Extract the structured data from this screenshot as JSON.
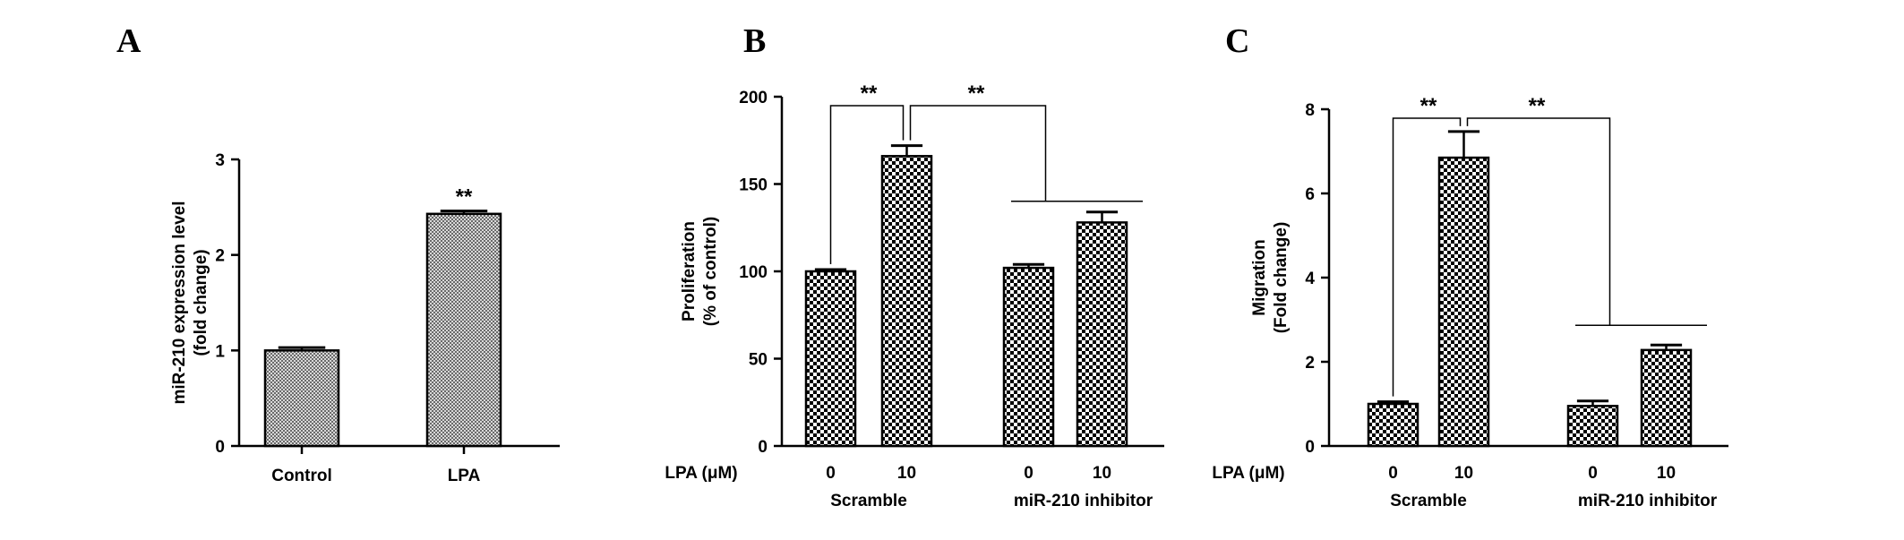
{
  "colors": {
    "ink": "#000000",
    "bar_pattern_dark": "#000000",
    "bar_pattern_light": "#ffffff"
  },
  "chart_data": [
    {
      "panel": "A",
      "type": "bar",
      "ylabel_lines": [
        "miR-210 expression level",
        "(fold change)"
      ],
      "ylim": [
        0,
        3
      ],
      "yticks": [
        0,
        1,
        2,
        3
      ],
      "categories": [
        "Control",
        "LPA"
      ],
      "values": [
        1.0,
        2.43
      ],
      "errors": [
        0.03,
        0.03
      ],
      "significance": [
        {
          "label": "**",
          "over": 1
        }
      ],
      "grid": false
    },
    {
      "panel": "B",
      "type": "bar",
      "ylabel_lines": [
        "Proliferation",
        "(% of control)"
      ],
      "ylim": [
        0,
        200
      ],
      "yticks": [
        0,
        50,
        100,
        150,
        200
      ],
      "row_label": "LPA (μM)",
      "x_labels": [
        "0",
        "10",
        "0",
        "10"
      ],
      "groups": [
        "Scramble",
        "miR-210 inhibitor"
      ],
      "values": [
        100,
        166,
        102,
        128
      ],
      "errors": [
        1,
        6,
        2,
        6
      ],
      "significance": [
        {
          "label": "**",
          "from": 0,
          "to": 1
        },
        {
          "label": "**",
          "from": 1,
          "to": "group2"
        }
      ],
      "grid": false
    },
    {
      "panel": "C",
      "type": "bar",
      "ylabel_lines": [
        "Migration",
        "(Fold change)"
      ],
      "ylim": [
        0,
        8
      ],
      "yticks": [
        0,
        2,
        4,
        6,
        8
      ],
      "row_label": "LPA (μM)",
      "x_labels": [
        "0",
        "10",
        "0",
        "10"
      ],
      "groups": [
        "Scramble",
        "miR-210 inhibitor"
      ],
      "values": [
        1.0,
        6.85,
        0.95,
        2.28
      ],
      "errors": [
        0.05,
        0.62,
        0.12,
        0.12
      ],
      "significance": [
        {
          "label": "**",
          "from": 0,
          "to": 1
        },
        {
          "label": "**",
          "from": 1,
          "to": "group2"
        }
      ],
      "grid": false
    }
  ]
}
